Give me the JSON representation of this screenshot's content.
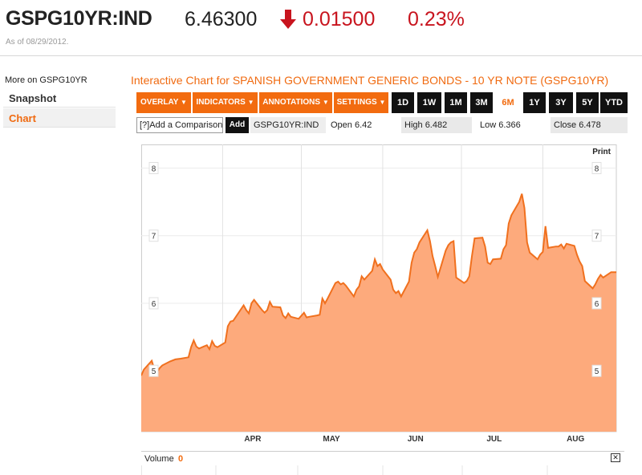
{
  "header": {
    "ticker": "GSPG10YR:IND",
    "price": "6.46300",
    "change": "0.01500",
    "change_pct": "0.23%",
    "as_of": "As of 08/29/2012.",
    "change_color": "#c8141e",
    "direction_icon": "down-arrow-icon"
  },
  "sidebar": {
    "title": "More on GSPG10YR",
    "items": [
      {
        "label": "Snapshot",
        "active": false
      },
      {
        "label": "Chart",
        "active": true
      }
    ],
    "accent": "#f06a10"
  },
  "chart_panel": {
    "title": "Interactive Chart for SPANISH GOVERNMENT GENERIC BONDS - 10 YR NOTE (GSPG10YR)",
    "menus": [
      {
        "label": "OVERLAY"
      },
      {
        "label": "INDICATORS"
      },
      {
        "label": "ANNOTATIONS"
      },
      {
        "label": "SETTINGS"
      }
    ],
    "periods": [
      "1D",
      "1W",
      "1M",
      "3M",
      "6M",
      "1Y",
      "3Y",
      "5Y",
      "YTD"
    ],
    "active_period": "6M",
    "compare_help": "[?]",
    "compare_placeholder": "Add a Comparison",
    "add_label": "Add",
    "symbol": "GSPG10YR:IND",
    "open_label": "Open",
    "open_value": "6.42",
    "high_label": "High",
    "high_value": "6.482",
    "low_label": "Low",
    "low_value": "6.366",
    "close_label": "Close",
    "close_value": "6.478",
    "print_label": "Print",
    "volume_label": "Volume",
    "volume_value": "0",
    "close_icon": "close-icon"
  },
  "chart_data": {
    "type": "area",
    "title": "",
    "xlabel": "",
    "ylabel": "",
    "ylim": [
      4.1,
      8.35
    ],
    "yticks": [
      5,
      6,
      7,
      8
    ],
    "xticks": [
      "APR",
      "MAY",
      "JUN",
      "JUL",
      "AUG"
    ],
    "x_range": [
      "2012-03-01",
      "2012-08-29"
    ],
    "fill_color": "#fdaa7c",
    "line_color": "#f0701e",
    "grid": true,
    "series": [
      {
        "name": "",
        "points": [
          [
            "2012-03-01",
            4.93
          ],
          [
            "2012-03-02",
            5.02
          ],
          [
            "2012-03-05",
            5.15
          ],
          [
            "2012-03-06",
            5.02
          ],
          [
            "2012-03-07",
            4.98
          ],
          [
            "2012-03-08",
            5.04
          ],
          [
            "2012-03-09",
            5.08
          ],
          [
            "2012-03-12",
            5.14
          ],
          [
            "2012-03-14",
            5.17
          ],
          [
            "2012-03-16",
            5.18
          ],
          [
            "2012-03-19",
            5.2
          ],
          [
            "2012-03-20",
            5.35
          ],
          [
            "2012-03-21",
            5.45
          ],
          [
            "2012-03-22",
            5.36
          ],
          [
            "2012-03-23",
            5.33
          ],
          [
            "2012-03-26",
            5.38
          ],
          [
            "2012-03-27",
            5.32
          ],
          [
            "2012-03-28",
            5.44
          ],
          [
            "2012-03-29",
            5.37
          ],
          [
            "2012-03-30",
            5.35
          ],
          [
            "2012-04-02",
            5.42
          ],
          [
            "2012-04-03",
            5.66
          ],
          [
            "2012-04-04",
            5.73
          ],
          [
            "2012-04-05",
            5.74
          ],
          [
            "2012-04-09",
            5.97
          ],
          [
            "2012-04-10",
            5.9
          ],
          [
            "2012-04-11",
            5.85
          ],
          [
            "2012-04-12",
            6.0
          ],
          [
            "2012-04-13",
            6.05
          ],
          [
            "2012-04-16",
            5.9
          ],
          [
            "2012-04-17",
            5.86
          ],
          [
            "2012-04-18",
            5.9
          ],
          [
            "2012-04-19",
            6.02
          ],
          [
            "2012-04-20",
            5.95
          ],
          [
            "2012-04-23",
            5.94
          ],
          [
            "2012-04-24",
            5.82
          ],
          [
            "2012-04-25",
            5.78
          ],
          [
            "2012-04-26",
            5.85
          ],
          [
            "2012-04-27",
            5.8
          ],
          [
            "2012-04-30",
            5.77
          ],
          [
            "2012-05-02",
            5.86
          ],
          [
            "2012-05-03",
            5.79
          ],
          [
            "2012-05-04",
            5.8
          ],
          [
            "2012-05-07",
            5.82
          ],
          [
            "2012-05-08",
            5.83
          ],
          [
            "2012-05-09",
            6.07
          ],
          [
            "2012-05-10",
            6.0
          ],
          [
            "2012-05-11",
            6.07
          ],
          [
            "2012-05-14",
            6.3
          ],
          [
            "2012-05-15",
            6.32
          ],
          [
            "2012-05-16",
            6.28
          ],
          [
            "2012-05-17",
            6.3
          ],
          [
            "2012-05-18",
            6.26
          ],
          [
            "2012-05-21",
            6.1
          ],
          [
            "2012-05-22",
            6.2
          ],
          [
            "2012-05-23",
            6.25
          ],
          [
            "2012-05-24",
            6.4
          ],
          [
            "2012-05-25",
            6.35
          ],
          [
            "2012-05-28",
            6.48
          ],
          [
            "2012-05-29",
            6.65
          ],
          [
            "2012-05-30",
            6.55
          ],
          [
            "2012-05-31",
            6.58
          ],
          [
            "2012-06-01",
            6.5
          ],
          [
            "2012-06-04",
            6.35
          ],
          [
            "2012-06-05",
            6.2
          ],
          [
            "2012-06-06",
            6.15
          ],
          [
            "2012-06-07",
            6.18
          ],
          [
            "2012-06-08",
            6.1
          ],
          [
            "2012-06-11",
            6.32
          ],
          [
            "2012-06-12",
            6.6
          ],
          [
            "2012-06-13",
            6.75
          ],
          [
            "2012-06-14",
            6.8
          ],
          [
            "2012-06-15",
            6.9
          ],
          [
            "2012-06-18",
            7.08
          ],
          [
            "2012-06-19",
            6.92
          ],
          [
            "2012-06-20",
            6.7
          ],
          [
            "2012-06-21",
            6.55
          ],
          [
            "2012-06-22",
            6.39
          ],
          [
            "2012-06-25",
            6.78
          ],
          [
            "2012-06-26",
            6.86
          ],
          [
            "2012-06-27",
            6.9
          ],
          [
            "2012-06-28",
            6.92
          ],
          [
            "2012-06-29",
            6.38
          ],
          [
            "2012-07-02",
            6.3
          ],
          [
            "2012-07-03",
            6.33
          ],
          [
            "2012-07-04",
            6.4
          ],
          [
            "2012-07-05",
            6.7
          ],
          [
            "2012-07-06",
            6.96
          ],
          [
            "2012-07-09",
            6.97
          ],
          [
            "2012-07-10",
            6.84
          ],
          [
            "2012-07-11",
            6.6
          ],
          [
            "2012-07-12",
            6.58
          ],
          [
            "2012-07-13",
            6.65
          ],
          [
            "2012-07-16",
            6.66
          ],
          [
            "2012-07-17",
            6.8
          ],
          [
            "2012-07-18",
            6.86
          ],
          [
            "2012-07-19",
            7.18
          ],
          [
            "2012-07-20",
            7.3
          ],
          [
            "2012-07-23",
            7.5
          ],
          [
            "2012-07-24",
            7.62
          ],
          [
            "2012-07-25",
            7.41
          ],
          [
            "2012-07-26",
            6.9
          ],
          [
            "2012-07-27",
            6.75
          ],
          [
            "2012-07-30",
            6.65
          ],
          [
            "2012-07-31",
            6.72
          ],
          [
            "2012-08-01",
            6.76
          ],
          [
            "2012-08-02",
            7.14
          ],
          [
            "2012-08-03",
            6.82
          ],
          [
            "2012-08-06",
            6.84
          ],
          [
            "2012-08-07",
            6.84
          ],
          [
            "2012-08-08",
            6.87
          ],
          [
            "2012-08-09",
            6.81
          ],
          [
            "2012-08-10",
            6.88
          ],
          [
            "2012-08-13",
            6.85
          ],
          [
            "2012-08-14",
            6.72
          ],
          [
            "2012-08-15",
            6.62
          ],
          [
            "2012-08-16",
            6.55
          ],
          [
            "2012-08-17",
            6.33
          ],
          [
            "2012-08-20",
            6.22
          ],
          [
            "2012-08-21",
            6.28
          ],
          [
            "2012-08-22",
            6.36
          ],
          [
            "2012-08-23",
            6.42
          ],
          [
            "2012-08-24",
            6.38
          ],
          [
            "2012-08-27",
            6.46
          ],
          [
            "2012-08-29",
            6.46
          ]
        ]
      }
    ]
  }
}
